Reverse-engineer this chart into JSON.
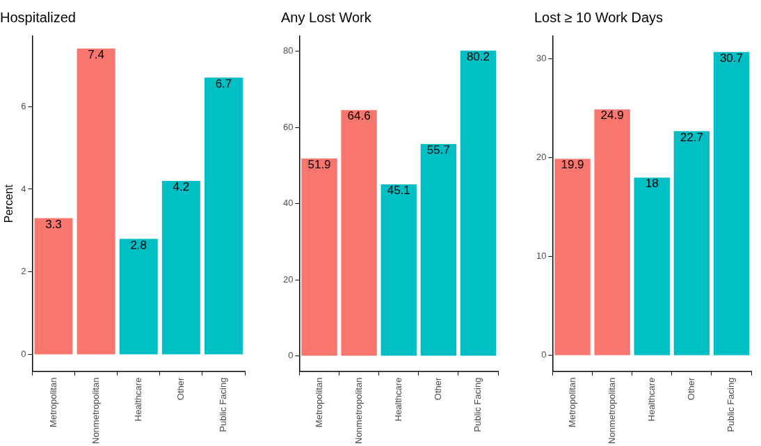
{
  "chart_data": [
    {
      "type": "bar",
      "title": "Hospitalized",
      "ylabel": "Percent",
      "categories": [
        "Metropolitan",
        "Nonmetropolitan",
        "Healthcare",
        "Other",
        "Public Facing"
      ],
      "values": [
        3.3,
        7.4,
        2.8,
        4.2,
        6.7
      ],
      "colors": [
        "#f8766d",
        "#f8766d",
        "#00bfc4",
        "#00bfc4",
        "#00bfc4"
      ],
      "ylim": [
        -0.4,
        7.7
      ],
      "yticks": [
        0,
        2,
        4,
        6
      ],
      "data_labels": true
    },
    {
      "type": "bar",
      "title": "Any Lost Work",
      "categories": [
        "Metropolitan",
        "Nonmetropolitan",
        "Healthcare",
        "Other",
        "Public Facing"
      ],
      "values": [
        51.9,
        64.6,
        45.1,
        55.7,
        80.2
      ],
      "colors": [
        "#f8766d",
        "#f8766d",
        "#00bfc4",
        "#00bfc4",
        "#00bfc4"
      ],
      "ylim": [
        -4,
        84
      ],
      "yticks": [
        0,
        20,
        40,
        60,
        80
      ],
      "data_labels": true
    },
    {
      "type": "bar",
      "title": "Lost ≥ 10 Work Days",
      "categories": [
        "Metropolitan",
        "Nonmetropolitan",
        "Healthcare",
        "Other",
        "Public Facing"
      ],
      "values": [
        19.9,
        24.9,
        18,
        22.7,
        30.7
      ],
      "colors": [
        "#f8766d",
        "#f8766d",
        "#00bfc4",
        "#00bfc4",
        "#00bfc4"
      ],
      "ylim": [
        -1.6,
        32.3
      ],
      "yticks": [
        0,
        10,
        20,
        30
      ],
      "data_labels": true
    }
  ]
}
